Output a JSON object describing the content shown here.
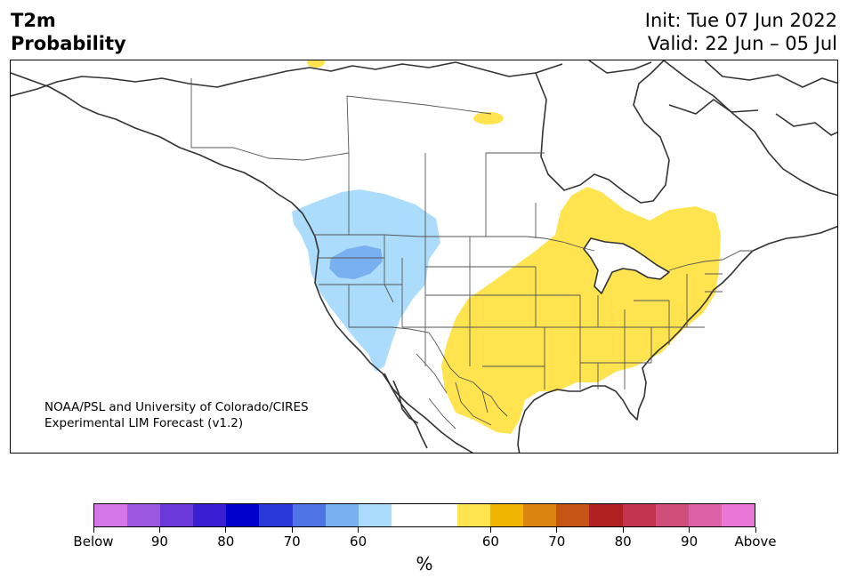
{
  "title": {
    "main_line1": "T2m",
    "main_line2": "Probability",
    "init": "Init: Tue 07 Jun 2022",
    "valid": "Valid: 22 Jun – 05 Jul"
  },
  "credit": {
    "line1": "NOAA/PSL and University of Colorado/CIRES",
    "line2": "Experimental LIM Forecast (v1.2)"
  },
  "colorbar": {
    "unit": "%",
    "segment_colors": [
      "#d577e8",
      "#9b57e0",
      "#6b38d9",
      "#3a1ed4",
      "#0000cc",
      "#2a3ad9",
      "#4f74e6",
      "#79b0f2",
      "#acdcfb",
      "#ffffff",
      "#ffffff",
      "#ffe34f",
      "#f0b500",
      "#dc8410",
      "#c45514",
      "#b02020",
      "#c2344f",
      "#cf4e7a",
      "#dc62a8",
      "#e877d8"
    ],
    "labels": [
      "Below",
      "90",
      "80",
      "70",
      "60",
      "60",
      "70",
      "80",
      "90",
      "Above"
    ]
  },
  "colors": {
    "below_light": "#acdcfb",
    "below_medium": "#79b0f2",
    "above_light": "#ffe34f",
    "coast": "#333333",
    "border": "#555555"
  }
}
